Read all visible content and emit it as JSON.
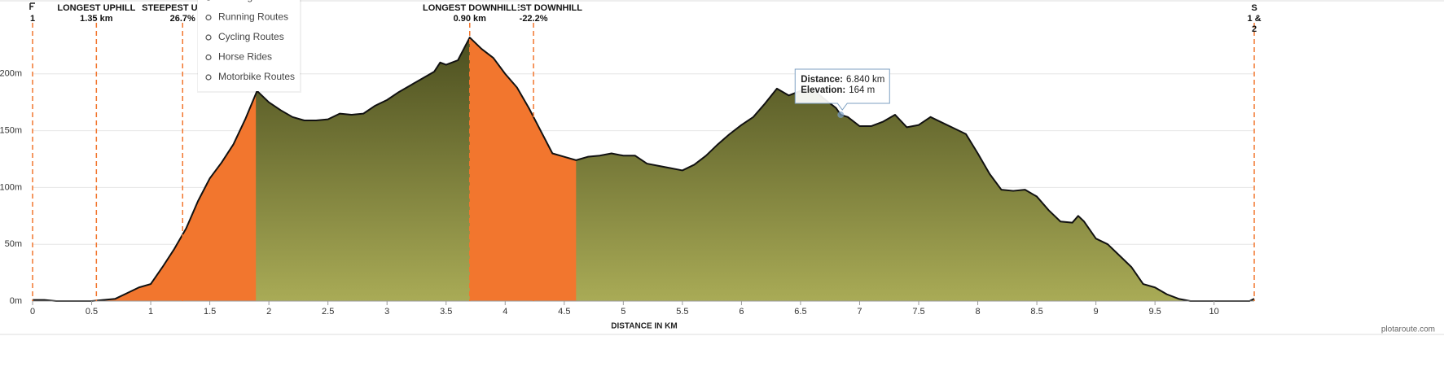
{
  "chart_data": {
    "type": "area",
    "x_label": "DISTANCE IN KM",
    "credit": "plotaroute.com",
    "x": [
      0,
      0.1,
      0.2,
      0.5,
      0.7,
      0.8,
      0.9,
      1.0,
      1.1,
      1.2,
      1.3,
      1.4,
      1.5,
      1.6,
      1.7,
      1.8,
      1.9,
      2.0,
      2.1,
      2.2,
      2.3,
      2.4,
      2.5,
      2.6,
      2.7,
      2.8,
      2.9,
      3.0,
      3.1,
      3.2,
      3.3,
      3.4,
      3.45,
      3.5,
      3.6,
      3.7,
      3.8,
      3.9,
      4.0,
      4.1,
      4.2,
      4.3,
      4.4,
      4.5,
      4.6,
      4.7,
      4.8,
      4.9,
      5.0,
      5.1,
      5.2,
      5.3,
      5.4,
      5.5,
      5.6,
      5.7,
      5.8,
      5.9,
      6.0,
      6.1,
      6.2,
      6.3,
      6.4,
      6.5,
      6.6,
      6.7,
      6.8,
      6.84,
      6.9,
      7.0,
      7.1,
      7.2,
      7.3,
      7.4,
      7.5,
      7.6,
      7.7,
      7.8,
      7.9,
      8.0,
      8.1,
      8.2,
      8.3,
      8.4,
      8.5,
      8.6,
      8.7,
      8.8,
      8.85,
      8.9,
      9.0,
      9.1,
      9.2,
      9.3,
      9.4,
      9.5,
      9.6,
      9.7,
      9.8,
      10.0,
      10.3,
      10.34
    ],
    "values": [
      1,
      1,
      0,
      0,
      2,
      7,
      12,
      15,
      30,
      46,
      64,
      88,
      108,
      122,
      138,
      160,
      185,
      175,
      168,
      162,
      159,
      159,
      160,
      165,
      164,
      165,
      172,
      177,
      184,
      190,
      196,
      202,
      210,
      208,
      212,
      232,
      222,
      214,
      200,
      188,
      170,
      150,
      130,
      127,
      124,
      127,
      128,
      130,
      128,
      128,
      121,
      119,
      117,
      115,
      120,
      128,
      138,
      147,
      155,
      162,
      174,
      187,
      181,
      185,
      187,
      178,
      170,
      164,
      162,
      154,
      154,
      158,
      164,
      153,
      155,
      162,
      157,
      152,
      147,
      130,
      112,
      98,
      97,
      98,
      92,
      80,
      70,
      69,
      75,
      70,
      55,
      50,
      40,
      30,
      15,
      12,
      6,
      2,
      0,
      0,
      0,
      2
    ],
    "gradient": [
      "#4b4e1f",
      "#a9ab56"
    ],
    "line_color": "#111111",
    "highlight_color": "#f2762e",
    "highlights": [
      {
        "from": 0.54,
        "to": 1.89
      },
      {
        "from": 3.7,
        "to": 4.6
      }
    ],
    "annotations": [
      {
        "x": 0,
        "lines": [
          "",
          "1"
        ]
      },
      {
        "x": 0.54,
        "lines": [
          "LONGEST UPHILL",
          "1.35 km"
        ]
      },
      {
        "x": 1.27,
        "lines": [
          "STEEPEST UPHILL",
          "26.7%"
        ]
      },
      {
        "x": 4.24,
        "lines": [
          "STEEPEST DOWNHILL",
          "-22.2%"
        ]
      },
      {
        "x": 3.7,
        "lines": [
          "LONGEST DOWNHILL",
          "0.90 km"
        ]
      },
      {
        "x": 10.34,
        "lines": [
          "S",
          "1 &",
          "2"
        ]
      }
    ],
    "xlim": [
      0,
      10.34
    ],
    "ylim": [
      0,
      265
    ],
    "xticks": [
      0,
      0.5,
      1,
      1.5,
      2,
      2.5,
      3,
      3.5,
      4,
      4.5,
      5,
      5.5,
      6,
      6.5,
      7,
      7.5,
      8,
      8.5,
      9,
      9.5,
      10
    ],
    "yticks": [
      {
        "value": 0,
        "label": "0m"
      },
      {
        "value": 50,
        "label": "50m"
      },
      {
        "value": 100,
        "label": "100m"
      },
      {
        "value": 150,
        "label": "150m"
      },
      {
        "value": 200,
        "label": "200m"
      }
    ],
    "grid": true,
    "tooltip": {
      "x": 6.84,
      "y": 164,
      "rows": [
        {
          "label": "Distance:",
          "value": "6.840 km"
        },
        {
          "label": "Elevation:",
          "value": "164 m"
        }
      ]
    }
  },
  "menu": {
    "items": [
      "Walking Routes",
      "Running Routes",
      "Cycling Routes",
      "Horse Rides",
      "Motorbike Routes"
    ]
  }
}
